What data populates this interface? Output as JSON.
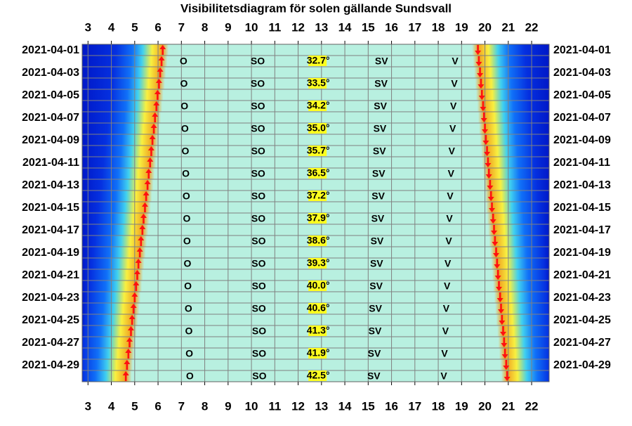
{
  "chart_data": {
    "type": "sun-visibility",
    "title": "Visibilitetsdiagram för solen gällande Sundsvall",
    "categories": [
      "2021-04-01",
      null,
      "2021-04-03",
      null,
      "2021-04-05",
      null,
      "2021-04-07",
      null,
      "2021-04-09",
      null,
      "2021-04-11",
      null,
      "2021-04-13",
      null,
      "2021-04-15",
      null,
      "2021-04-17",
      null,
      "2021-04-19",
      null,
      "2021-04-21",
      null,
      "2021-04-23",
      null,
      "2021-04-25",
      null,
      "2021-04-27",
      null,
      "2021-04-29",
      null
    ],
    "xlim": [
      2.75,
      22.75
    ],
    "xticks": [
      3,
      4,
      5,
      6,
      7,
      8,
      9,
      10,
      11,
      12,
      13,
      14,
      15,
      16,
      17,
      18,
      19,
      20,
      21,
      22
    ],
    "sunrise": [
      6.2,
      6.15,
      6.09,
      6.04,
      5.98,
      5.93,
      5.87,
      5.82,
      5.76,
      5.71,
      5.66,
      5.6,
      5.55,
      5.49,
      5.44,
      5.38,
      5.33,
      5.27,
      5.22,
      5.16,
      5.11,
      5.06,
      5.0,
      4.95,
      4.89,
      4.84,
      4.78,
      4.73,
      4.67,
      4.62
    ],
    "sunset": [
      19.7,
      19.74,
      19.79,
      19.83,
      19.87,
      19.92,
      19.96,
      20.0,
      20.04,
      20.09,
      20.13,
      20.17,
      20.22,
      20.26,
      20.3,
      20.35,
      20.39,
      20.43,
      20.48,
      20.52,
      20.56,
      20.6,
      20.65,
      20.69,
      20.73,
      20.78,
      20.82,
      20.86,
      20.91,
      20.95
    ],
    "directions": [
      {
        "name": "O",
        "x": [
          null,
          7.09,
          null,
          7.11,
          null,
          7.13,
          null,
          7.15,
          null,
          7.17,
          null,
          7.19,
          null,
          7.21,
          null,
          7.23,
          null,
          7.24,
          null,
          7.26,
          null,
          7.28,
          null,
          7.3,
          null,
          7.32,
          null,
          7.34,
          null,
          7.36
        ]
      },
      {
        "name": "SO",
        "x": [
          null,
          10.27,
          null,
          10.27,
          null,
          10.28,
          null,
          10.28,
          null,
          10.29,
          null,
          10.29,
          null,
          10.3,
          null,
          10.3,
          null,
          10.31,
          null,
          10.31,
          null,
          10.32,
          null,
          10.32,
          null,
          10.33,
          null,
          10.33,
          null,
          10.34
        ]
      },
      {
        "name": "SV",
        "x": [
          null,
          15.57,
          null,
          15.55,
          null,
          15.52,
          null,
          15.5,
          null,
          15.48,
          null,
          15.45,
          null,
          15.43,
          null,
          15.41,
          null,
          15.38,
          null,
          15.36,
          null,
          15.34,
          null,
          15.31,
          null,
          15.29,
          null,
          15.26,
          null,
          15.24
        ]
      },
      {
        "name": "V",
        "x": [
          null,
          18.72,
          null,
          18.69,
          null,
          18.65,
          null,
          18.62,
          null,
          18.58,
          null,
          18.55,
          null,
          18.51,
          null,
          18.48,
          null,
          18.45,
          null,
          18.41,
          null,
          18.38,
          null,
          18.34,
          null,
          18.31,
          null,
          18.27,
          null,
          18.24
        ]
      }
    ],
    "elevation": {
      "x": [
        null,
        12.86,
        null,
        12.86,
        null,
        12.86,
        null,
        12.86,
        null,
        12.86,
        null,
        12.86,
        null,
        12.86,
        null,
        12.86,
        null,
        12.86,
        null,
        12.86,
        null,
        12.86,
        null,
        12.86,
        null,
        12.86,
        null,
        12.86,
        null,
        12.86
      ],
      "values": [
        null,
        32.7,
        null,
        33.5,
        null,
        34.2,
        null,
        35.0,
        null,
        35.7,
        null,
        36.5,
        null,
        37.2,
        null,
        37.9,
        null,
        38.6,
        null,
        39.3,
        null,
        40.0,
        null,
        40.6,
        null,
        41.3,
        null,
        41.9,
        null,
        42.5
      ],
      "value_labels": [
        null,
        "32.7°",
        null,
        "33.5°",
        null,
        "34.2°",
        null,
        "35.0°",
        null,
        "35.7°",
        null,
        "36.5°",
        null,
        "37.2°",
        null,
        "37.9°",
        null,
        "38.6°",
        null,
        "39.3°",
        null,
        "40.0°",
        null,
        "40.6°",
        null,
        "41.3°",
        null,
        "41.9°",
        null,
        "42.5°"
      ]
    }
  }
}
